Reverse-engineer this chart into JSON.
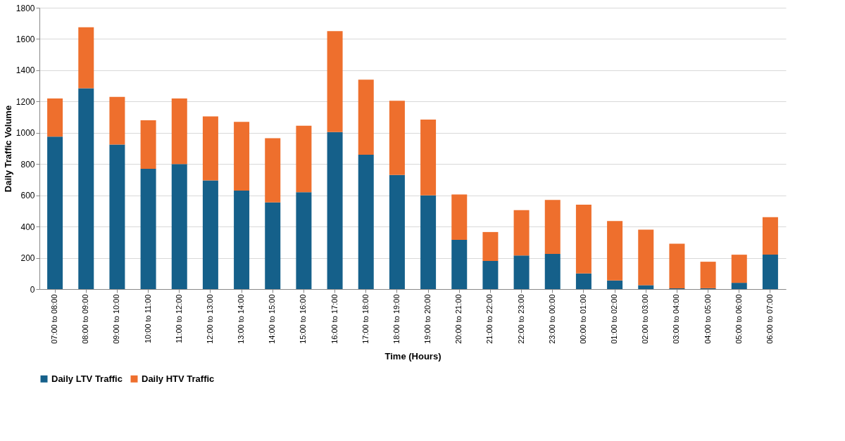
{
  "chart_data": {
    "type": "bar",
    "stacked": true,
    "xlabel": "Time (Hours)",
    "ylabel": "Daily Traffic Volume",
    "categories": [
      "07:00 to 08:00",
      "08:00 to 09:00",
      "09:00 to 10:00",
      "10:00 to 11:00",
      "11:00 to 12:00",
      "12:00 to 13:00",
      "13:00 to 14:00",
      "14:00 to 15:00",
      "15:00 to 16:00",
      "16:00 to 17:00",
      "17:00 to 18:00",
      "18:00 to 19:00",
      "19:00 to 20:00",
      "20:00 to 21:00",
      "21:00 to 22:00",
      "22:00 to 23:00",
      "23:00 to 00:00",
      "00:00 to 01:00",
      "01:00 to 02:00",
      "02:00 to 03:00",
      "03:00 to 04:00",
      "04:00 to 05:00",
      "05:00 to 06:00",
      "06:00 to 07:00"
    ],
    "series": [
      {
        "name": "Daily LTV Traffic",
        "color": "#15608a",
        "values": [
          975,
          1285,
          925,
          770,
          800,
          695,
          630,
          555,
          620,
          1005,
          860,
          730,
          600,
          315,
          180,
          215,
          225,
          100,
          55,
          25,
          5,
          5,
          40,
          220
        ]
      },
      {
        "name": "Daily HTV Traffic",
        "color": "#ee6f2d",
        "values": [
          245,
          390,
          305,
          310,
          420,
          410,
          440,
          410,
          425,
          645,
          480,
          475,
          485,
          290,
          185,
          290,
          345,
          440,
          380,
          355,
          285,
          170,
          180,
          240
        ]
      }
    ],
    "ylim": [
      0,
      1800
    ],
    "yticks": [
      0,
      200,
      400,
      600,
      800,
      1000,
      1200,
      1400,
      1600,
      1800
    ],
    "grid": "y",
    "legend": "bottom"
  }
}
